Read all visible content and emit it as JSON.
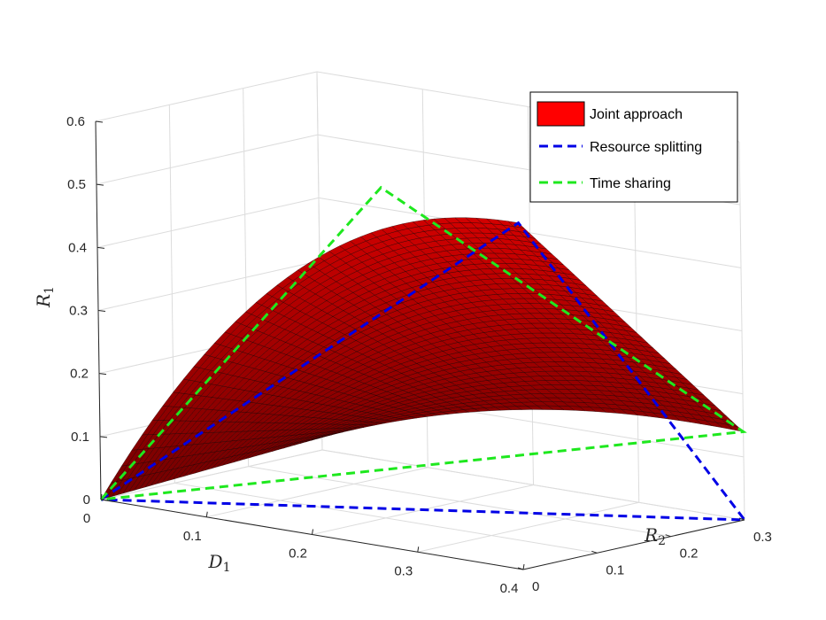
{
  "chart_data": {
    "type": "surface",
    "x_axis": {
      "label": "D",
      "label_sub": "1",
      "range": [
        0,
        0.4
      ],
      "ticks": [
        "0",
        "0.1",
        "0.2",
        "0.3",
        "0.4"
      ]
    },
    "y_axis": {
      "label": "R",
      "label_sub": "2",
      "range": [
        0,
        0.3
      ],
      "ticks": [
        "0",
        "0.1",
        "0.2",
        "0.3"
      ]
    },
    "z_axis": {
      "label": "R",
      "label_sub": "1",
      "range": [
        0,
        0.6
      ],
      "ticks": [
        "0",
        "0.1",
        "0.2",
        "0.3",
        "0.4",
        "0.5",
        "0.6"
      ]
    },
    "grid": true,
    "legend_position": "top-right",
    "colors": {
      "surface_fill": "#d40000",
      "surface_mesh": "#1a0000",
      "resource_splitting": "#0000e6",
      "time_sharing": "#1ee81e"
    },
    "series": [
      {
        "name": "Joint approach",
        "kind": "surface",
        "peak_points": [
          {
            "D1": 0.4,
            "R2": 0,
            "R1": 0.55
          },
          {
            "D1": 0,
            "R2": 0.3,
            "R1": 0.02
          },
          {
            "D1": 0.4,
            "R2": 0.3,
            "R1": 0.14
          }
        ]
      },
      {
        "name": "Resource splitting",
        "kind": "line",
        "style": "dashed",
        "points": [
          {
            "D1": 0,
            "R2": 0,
            "R1": 0
          },
          {
            "D1": 0.4,
            "R2": 0,
            "R1": 0.55
          },
          {
            "D1": 0.4,
            "R2": 0.3,
            "R1": 0
          },
          {
            "D1": 0,
            "R2": 0,
            "R1": 0
          }
        ]
      },
      {
        "name": "Time sharing",
        "kind": "line",
        "style": "dashed",
        "points": [
          {
            "D1": 0,
            "R2": 0,
            "R1": 0
          },
          {
            "D1": 0.27,
            "R2": 0,
            "R1": 0.57
          },
          {
            "D1": 0.4,
            "R2": 0.3,
            "R1": 0.14
          },
          {
            "D1": 0,
            "R2": 0,
            "R1": 0
          }
        ]
      }
    ]
  }
}
